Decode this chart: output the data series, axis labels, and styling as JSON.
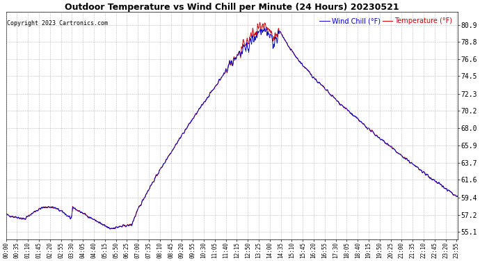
{
  "title": "Outdoor Temperature vs Wind Chill per Minute (24 Hours) 20230521",
  "copyright": "Copyright 2023 Cartronics.com",
  "legend_wind_chill": "Wind Chill (°F)",
  "legend_temperature": "Temperature (°F)",
  "bg_color": "#ffffff",
  "plot_bg_color": "#ffffff",
  "grid_color": "#aaaaaa",
  "title_color": "#000000",
  "wind_chill_color": "#0000cc",
  "temperature_color": "#cc0000",
  "copyright_color": "#000000",
  "legend_wc_color": "#0000cc",
  "legend_temp_color": "#cc0000",
  "yticks": [
    55.1,
    57.2,
    59.4,
    61.6,
    63.7,
    65.9,
    68.0,
    70.2,
    72.3,
    74.5,
    76.6,
    78.8,
    80.9
  ],
  "ylim": [
    54.2,
    82.5
  ],
  "num_minutes": 1440,
  "tick_step": 35
}
